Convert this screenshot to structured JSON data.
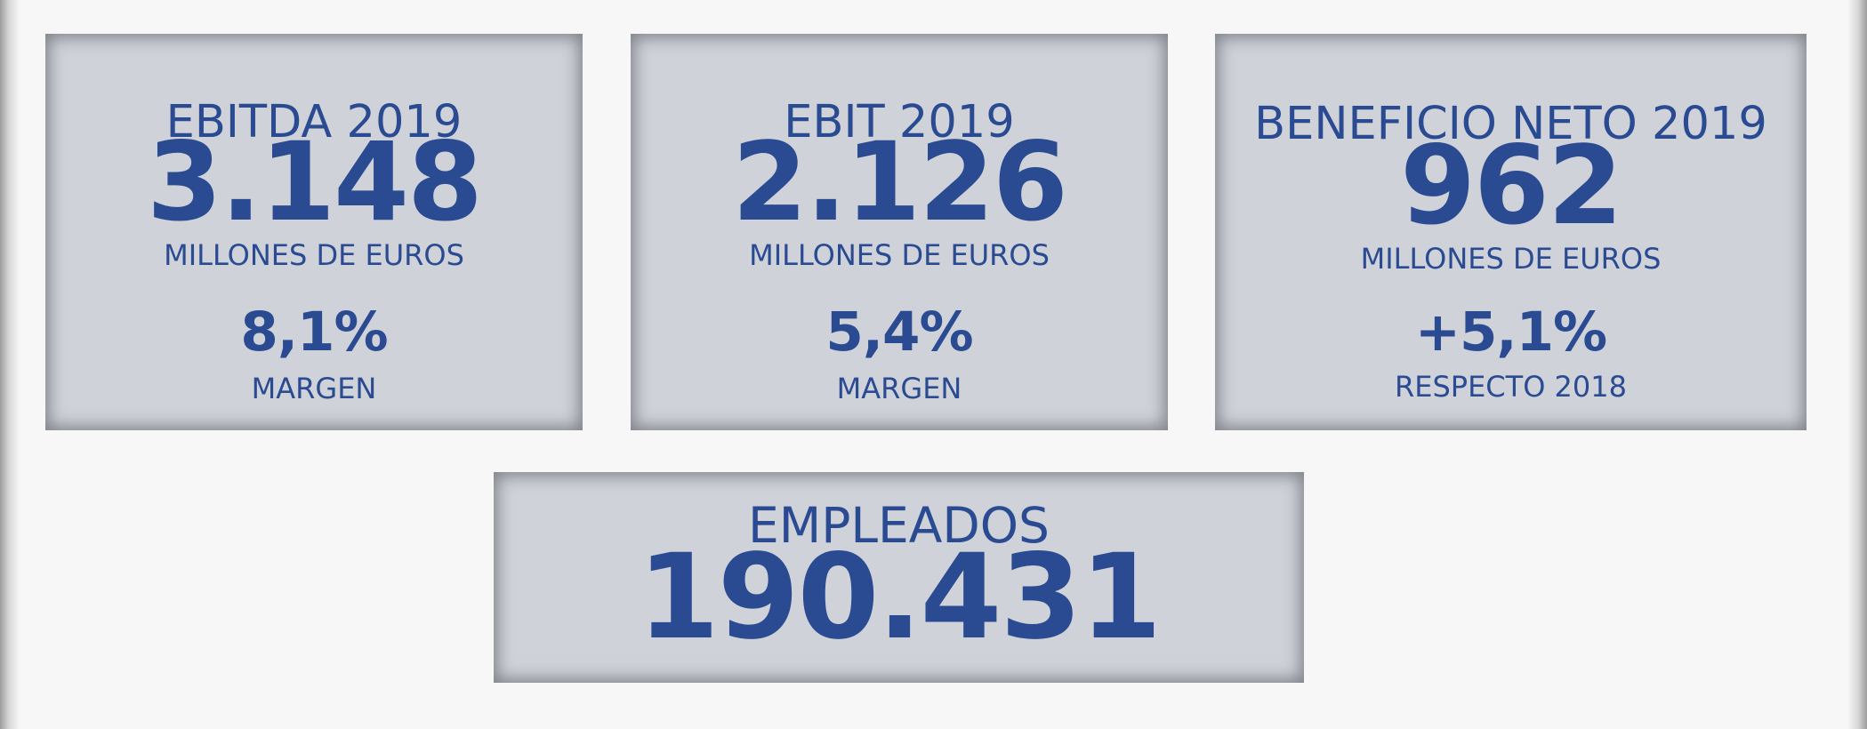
{
  "cards": [
    {
      "title": "EBITDA 2019",
      "value": "3.148",
      "unit": "MILLONES DE EUROS",
      "pct": "8,1%",
      "pct_label": "MARGEN"
    },
    {
      "title": "EBIT 2019",
      "value": "2.126",
      "unit": "MILLONES DE EUROS",
      "pct": "5,4%",
      "pct_label": "MARGEN"
    },
    {
      "title": "BENEFICIO NETO 2019",
      "value": "962",
      "unit": "MILLONES DE EUROS",
      "pct": "+5,1%",
      "pct_label": "RESPECTO 2018"
    }
  ],
  "employees": {
    "title": "EMPLEADOS",
    "value": "190.431"
  },
  "colors": {
    "text": "#2a4a91",
    "card_bg": "#cfd2d9",
    "page_bg": "#f7f7f7"
  }
}
